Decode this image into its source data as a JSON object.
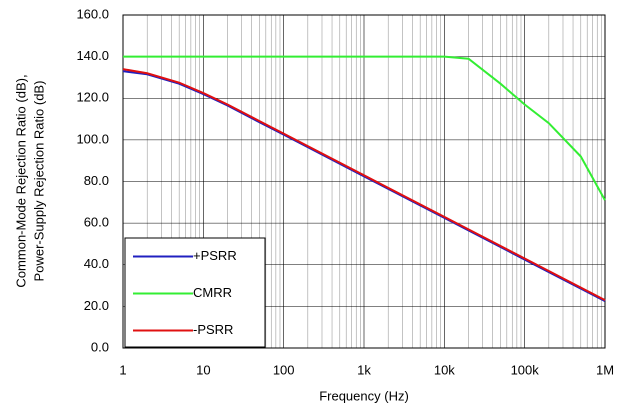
{
  "chart_data": {
    "type": "line",
    "xlabel": "Frequency (Hz)",
    "ylabel": [
      "Common-Mode Rejection Ratio (dB),",
      "Power-Supply Rejection Ratio (dB)"
    ],
    "xscale": "log",
    "xlim": [
      1,
      1000000
    ],
    "xticks": [
      1,
      10,
      100,
      {
        "value": 1000,
        "label": "1k"
      },
      {
        "value": 10000,
        "label": "10k"
      },
      {
        "value": 100000,
        "label": "100k"
      },
      {
        "value": 1000000,
        "label": "1M"
      }
    ],
    "ylim": [
      0,
      160
    ],
    "yticks": [
      {
        "value": 0,
        "label": "0.0"
      },
      {
        "value": 20,
        "label": "20.0"
      },
      {
        "value": 40,
        "label": "40.0"
      },
      {
        "value": 60,
        "label": "60.0"
      },
      {
        "value": 80,
        "label": "80.0"
      },
      {
        "value": 100,
        "label": "100.0"
      },
      {
        "value": 120,
        "label": "120.0"
      },
      {
        "value": 140,
        "label": "140.0"
      },
      {
        "value": 160,
        "label": "160.0"
      }
    ],
    "grid": true,
    "minor_grid": true,
    "legend": "lower left",
    "series": [
      {
        "name": "+PSRR",
        "color": "#2020c0",
        "x": [
          1,
          2,
          5,
          10,
          20,
          50,
          100,
          1000,
          10000,
          100000,
          1000000
        ],
        "values": [
          133,
          131.5,
          127,
          122,
          116.5,
          108.5,
          102.5,
          82.5,
          62.5,
          42.5,
          22.5
        ]
      },
      {
        "name": "CMRR",
        "color": "#33ee33",
        "x": [
          1,
          10,
          100,
          1000,
          5000,
          10000,
          20000,
          50000,
          100000,
          200000,
          500000,
          1000000
        ],
        "values": [
          140,
          140,
          140,
          140,
          140,
          140,
          139,
          127,
          117,
          108,
          92,
          71
        ]
      },
      {
        "name": "-PSRR",
        "color": "#e01010",
        "x": [
          1,
          2,
          5,
          10,
          20,
          50,
          100,
          1000,
          10000,
          100000,
          1000000
        ],
        "values": [
          134,
          132,
          127.5,
          122.5,
          117,
          109,
          103,
          83,
          63,
          43,
          23
        ]
      }
    ]
  }
}
